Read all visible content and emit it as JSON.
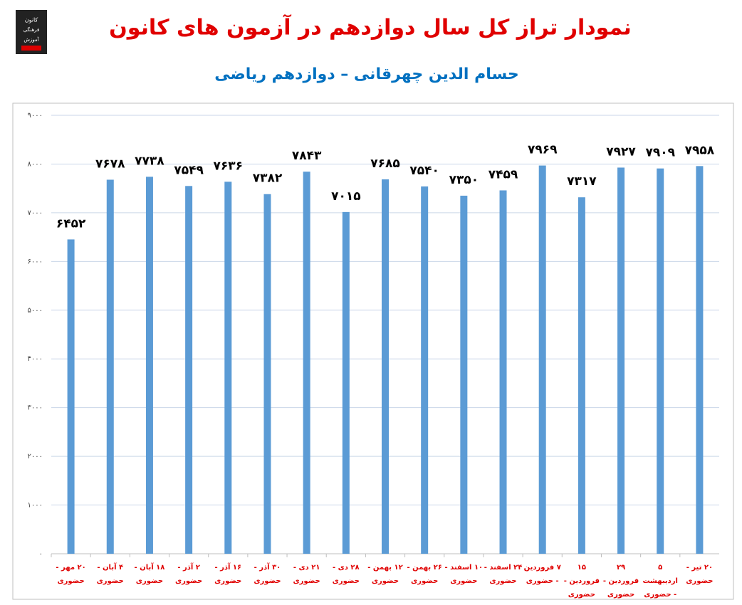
{
  "logo_text": [
    "کانون",
    "فرهنگی",
    "آموزش"
  ],
  "chart_data": {
    "type": "bar",
    "title": "نمودار تراز کل سال دوازدهم در آزمون های کانون",
    "subtitle": "حسام الدین چهرقانی – دوازدهم ریاضی",
    "categories": [
      "۲۰ مهر - حضوری",
      "۴ آبان - حضوری",
      "۱۸ آبان - حضوری",
      "۲ آذر - حضوری",
      "۱۶ آذر - حضوری",
      "۳۰ آذر - حضوری",
      "۲۱ دی - حضوری",
      "۲۸ دی - حضوری",
      "۱۲ بهمن - حضوری",
      "۲۶ بهمن - حضوری",
      "۱۰ اسفند - حضوری",
      "۲۴ اسفند - حضوری",
      "۷ فروردین - حضوری",
      "۱۵ فروردین - حضوری",
      "۲۹ فروردین - حضوری",
      "۵ اردیبهشت - حضوری",
      "۲۰ تیر - حضوری"
    ],
    "values": [
      6452,
      7678,
      7738,
      7549,
      7636,
      7382,
      7843,
      7015,
      7685,
      7540,
      7350,
      7459,
      7969,
      7317,
      7927,
      7909,
      7958
    ],
    "value_labels": [
      "۶۴۵۲",
      "۷۶۷۸",
      "۷۷۳۸",
      "۷۵۴۹",
      "۷۶۳۶",
      "۷۳۸۲",
      "۷۸۴۳",
      "۷۰۱۵",
      "۷۶۸۵",
      "۷۵۴۰",
      "۷۳۵۰",
      "۷۴۵۹",
      "۷۹۶۹",
      "۷۳۱۷",
      "۷۹۲۷",
      "۷۹۰۹",
      "۷۹۵۸"
    ],
    "color": "#5b9bd5",
    "ylim": [
      0,
      9000
    ],
    "yticks": [
      {
        "value": 0,
        "label": "۰"
      },
      {
        "value": 1000,
        "label": "۱۰۰۰"
      },
      {
        "value": 2000,
        "label": "۲۰۰۰"
      },
      {
        "value": 3000,
        "label": "۳۰۰۰"
      },
      {
        "value": 4000,
        "label": "۴۰۰۰"
      },
      {
        "value": 5000,
        "label": "۵۰۰۰"
      },
      {
        "value": 6000,
        "label": "۶۰۰۰"
      },
      {
        "value": 7000,
        "label": "۷۰۰۰"
      },
      {
        "value": 8000,
        "label": "۸۰۰۰"
      },
      {
        "value": 9000,
        "label": "۹۰۰۰"
      }
    ],
    "grid": true
  }
}
